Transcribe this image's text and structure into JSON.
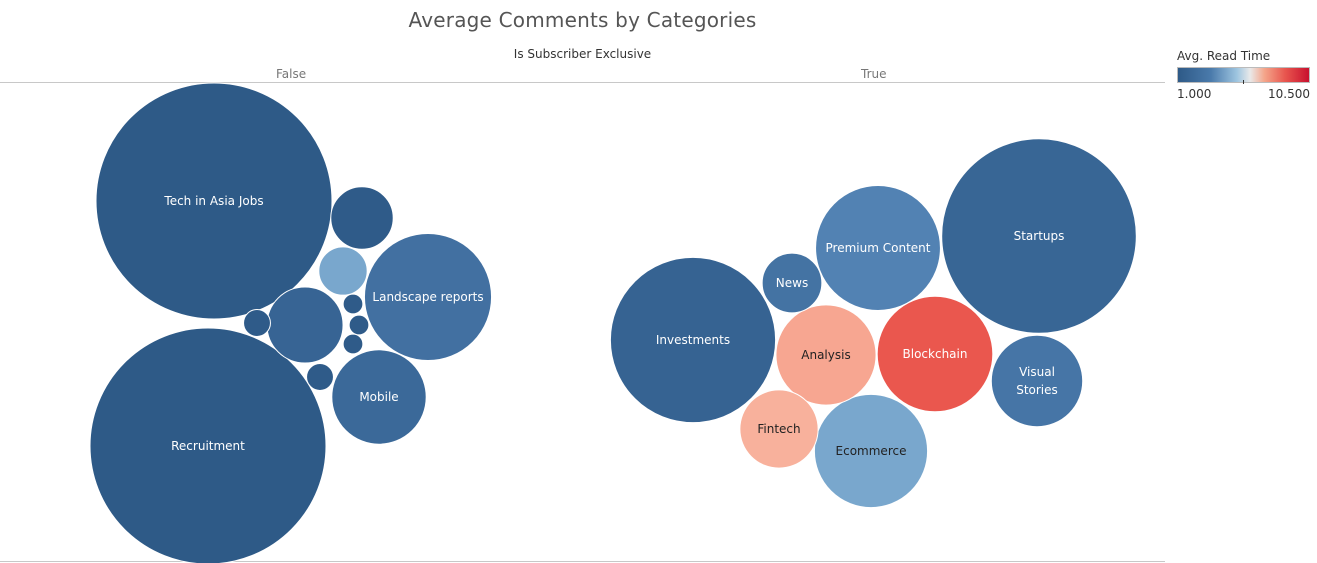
{
  "chart_title": "Average Comments by Categories",
  "facet_header": "Is Subscriber Exclusive",
  "panels": [
    {
      "label": "False"
    },
    {
      "label": "True"
    }
  ],
  "legend": {
    "title": "Avg. Read Time",
    "min_label": "1.000",
    "max_label": "10.500"
  },
  "colors": {
    "low": "#2e5a87",
    "mid": "#e9e9e9",
    "high": "#c8102e"
  },
  "chart_data": {
    "type": "packed-bubble",
    "size_measure": "Avg. Comments",
    "color_measure": "Avg. Read Time",
    "color_range": [
      1.0,
      10.5
    ],
    "facet_field": "Is Subscriber Exclusive",
    "bubbles": [
      {
        "panel": "False",
        "label": "Tech in Asia Jobs",
        "size": 100,
        "read_time": 1.0
      },
      {
        "panel": "False",
        "label": "Recruitment",
        "size": 100,
        "read_time": 1.0
      },
      {
        "panel": "False",
        "label": "Landscape reports",
        "size": 29,
        "read_time": 2.3
      },
      {
        "panel": "False",
        "label": "Mobile",
        "size": 16,
        "read_time": 2.0
      },
      {
        "panel": "False",
        "label": "",
        "size": 10.4,
        "read_time": 1.7
      },
      {
        "panel": "False",
        "label": "",
        "size": 7,
        "read_time": 1.1
      },
      {
        "panel": "False",
        "label": "",
        "size": 4.2,
        "read_time": 4.0
      },
      {
        "panel": "False",
        "label": "",
        "size": 1.3,
        "read_time": 1.1
      },
      {
        "panel": "False",
        "label": "",
        "size": 1.3,
        "read_time": 1.1
      },
      {
        "panel": "False",
        "label": "",
        "size": 0.7,
        "read_time": 1.1
      },
      {
        "panel": "False",
        "label": "",
        "size": 0.7,
        "read_time": 1.1
      },
      {
        "panel": "False",
        "label": "",
        "size": 0.7,
        "read_time": 1.1
      },
      {
        "panel": "True",
        "label": "Startups",
        "size": 68,
        "read_time": 1.8
      },
      {
        "panel": "True",
        "label": "Investments",
        "size": 49,
        "read_time": 1.6
      },
      {
        "panel": "True",
        "label": "Premium Content",
        "size": 28,
        "read_time": 3.0
      },
      {
        "panel": "True",
        "label": "Ecommerce",
        "size": 23,
        "read_time": 4.0
      },
      {
        "panel": "True",
        "label": "Blockchain",
        "size": 24,
        "read_time": 8.5
      },
      {
        "panel": "True",
        "label": "Analysis",
        "size": 18,
        "read_time": 6.7
      },
      {
        "panel": "True",
        "label": "Visual Stories",
        "size": 15,
        "read_time": 2.5
      },
      {
        "panel": "True",
        "label": "Fintech",
        "size": 11,
        "read_time": 6.3
      },
      {
        "panel": "True",
        "label": "News",
        "size": 6.4,
        "read_time": 2.4
      }
    ]
  }
}
